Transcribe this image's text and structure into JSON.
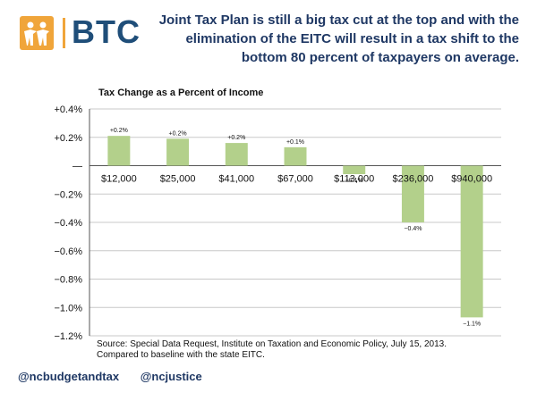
{
  "header": {
    "logo_text": "BTC",
    "headline": "Joint Tax Plan is still a big tax cut at the top and with the elimination of the EITC will result in a tax shift to the bottom 80 percent of taxpayers on average."
  },
  "colors": {
    "bar": "#b3d08b",
    "brand_blue": "#1f4e79",
    "brand_orange": "#f0a53a",
    "gridline": "#c8c8c8"
  },
  "chart_data": {
    "type": "bar",
    "title": "Tax Change as a Percent of Income",
    "categories": [
      "$12,000",
      "$25,000",
      "$41,000",
      "$67,000",
      "$113,000",
      "$236,000",
      "$940,000"
    ],
    "values": [
      0.21,
      0.19,
      0.16,
      0.13,
      -0.06,
      -0.4,
      -1.07
    ],
    "data_labels": [
      "+0.2%",
      "+0.2%",
      "+0.2%",
      "+0.1%",
      "−0.1%",
      "−0.4%",
      "−1.1%"
    ],
    "yticks": [
      0.4,
      0.2,
      0,
      -0.2,
      -0.4,
      -0.6,
      -0.8,
      -1.0,
      -1.2
    ],
    "ytick_labels": [
      "+0.4%",
      "+0.2%",
      "—",
      "−0.2%",
      "−0.4%",
      "−0.6%",
      "−0.8%",
      "−1.0%",
      "−1.2%"
    ],
    "ylim": [
      -1.2,
      0.4
    ],
    "grid": true
  },
  "source": "Source: Special Data Request, Institute on Taxation and Economic Policy, July 15, 2013. Compared to baseline with the state EITC.",
  "footer": {
    "handle1": "@ncbudgetandtax",
    "handle2": "@ncjustice"
  }
}
